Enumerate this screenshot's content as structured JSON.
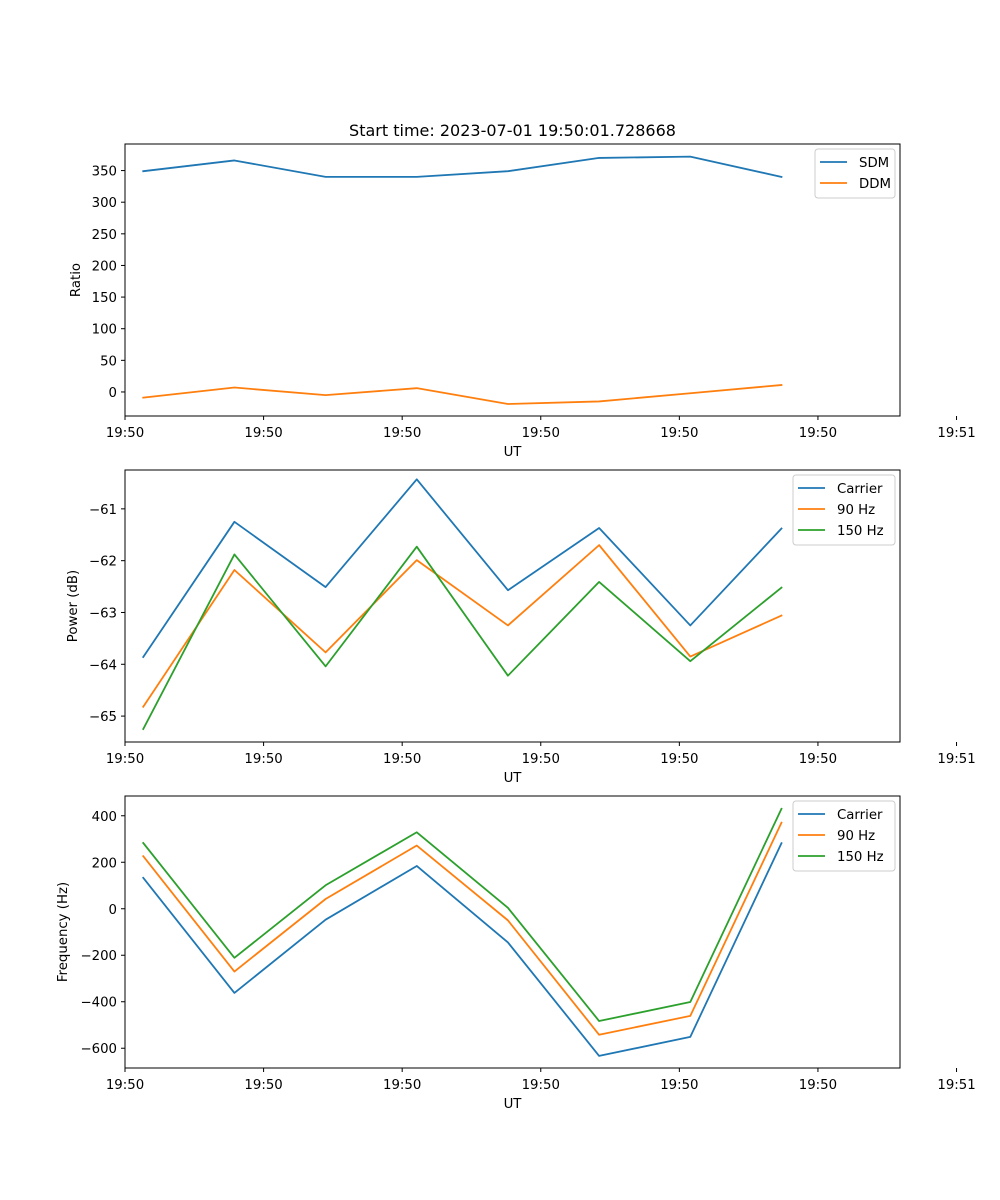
{
  "chart_data": [
    {
      "type": "line",
      "title": "Start time: 2023-07-01 19:50:01.728668",
      "xlabel": "UT",
      "ylabel": "Ratio",
      "x": [
        1,
        2,
        3,
        4,
        5,
        6,
        7,
        8
      ],
      "xlim": [
        0.8,
        9.3
      ],
      "xticks": [
        0.8,
        2.32,
        3.84,
        5.36,
        6.88,
        8.4,
        9.92
      ],
      "xtick_labels": [
        "19:50",
        "19:50",
        "19:50",
        "19:50",
        "19:50",
        "19:50",
        "19:51"
      ],
      "ylim": [
        -38,
        392
      ],
      "yticks": [
        0,
        50,
        100,
        150,
        200,
        250,
        300,
        350
      ],
      "legend_position": "top-right",
      "grid": false,
      "series": [
        {
          "name": "SDM",
          "color": "#1f77b4",
          "values": [
            349,
            366,
            340,
            340,
            349,
            370,
            372,
            340
          ]
        },
        {
          "name": "DDM",
          "color": "#ff7f0e",
          "values": [
            -9,
            7,
            -5,
            6,
            -19,
            -15,
            -2,
            11
          ]
        }
      ]
    },
    {
      "type": "line",
      "title": "",
      "xlabel": "UT",
      "ylabel": "Power (dB)",
      "x": [
        1,
        2,
        3,
        4,
        5,
        6,
        7,
        8
      ],
      "xlim": [
        0.8,
        9.3
      ],
      "xticks": [
        0.8,
        2.32,
        3.84,
        5.36,
        6.88,
        8.4,
        9.92
      ],
      "xtick_labels": [
        "19:50",
        "19:50",
        "19:50",
        "19:50",
        "19:50",
        "19:50",
        "19:51"
      ],
      "ylim": [
        -65.5,
        -60.25
      ],
      "yticks": [
        -65,
        -64,
        -63,
        -62,
        -61
      ],
      "legend_position": "top-right",
      "grid": false,
      "series": [
        {
          "name": "Carrier",
          "color": "#1f77b4",
          "values": [
            -63.86,
            -61.25,
            -62.51,
            -60.43,
            -62.57,
            -61.37,
            -63.25,
            -61.38
          ]
        },
        {
          "name": "90 Hz",
          "color": "#ff7f0e",
          "values": [
            -64.82,
            -62.18,
            -63.77,
            -61.99,
            -63.25,
            -61.7,
            -63.85,
            -63.06
          ]
        },
        {
          "name": "150 Hz",
          "color": "#2ca02c",
          "values": [
            -65.25,
            -61.88,
            -64.04,
            -61.73,
            -64.22,
            -62.41,
            -63.94,
            -62.52
          ]
        }
      ]
    },
    {
      "type": "line",
      "title": "",
      "xlabel": "UT",
      "ylabel": "Frequency (Hz)",
      "x": [
        1,
        2,
        3,
        4,
        5,
        6,
        7,
        8
      ],
      "xlim": [
        0.8,
        9.3
      ],
      "xticks": [
        0.8,
        2.32,
        3.84,
        5.36,
        6.88,
        8.4,
        9.92
      ],
      "xtick_labels": [
        "19:50",
        "19:50",
        "19:50",
        "19:50",
        "19:50",
        "19:50",
        "19:51"
      ],
      "ylim": [
        -685,
        485
      ],
      "yticks": [
        -600,
        -400,
        -200,
        0,
        200,
        400
      ],
      "legend_position": "top-right",
      "grid": false,
      "series": [
        {
          "name": "Carrier",
          "color": "#1f77b4",
          "values": [
            133,
            -362,
            -47,
            184,
            -145,
            -633,
            -551,
            282
          ]
        },
        {
          "name": "90 Hz",
          "color": "#ff7f0e",
          "values": [
            226,
            -270,
            42,
            272,
            -50,
            -542,
            -461,
            370
          ]
        },
        {
          "name": "150 Hz",
          "color": "#2ca02c",
          "values": [
            283,
            -211,
            101,
            329,
            4,
            -483,
            -401,
            430
          ]
        }
      ]
    }
  ]
}
